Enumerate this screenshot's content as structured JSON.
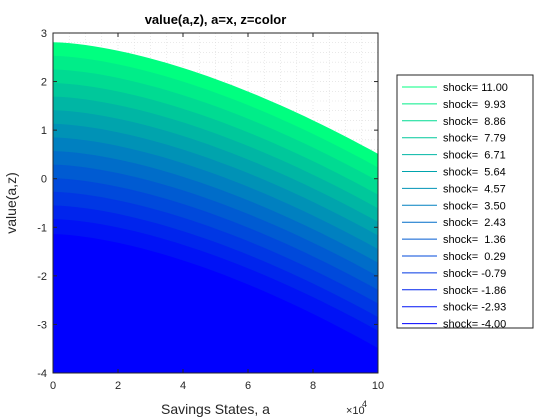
{
  "chart_data": {
    "type": "area",
    "title": "value(a,z), a=x, z=color",
    "xlabel": "Savings States, a",
    "ylabel": "value(a,z)",
    "x_exponent_label": "×10",
    "x_exponent_power": "4",
    "xlim": [
      0,
      100000
    ],
    "ylim": [
      -4,
      3
    ],
    "x_ticks": [
      0,
      20000,
      40000,
      60000,
      80000,
      100000
    ],
    "x_tick_labels": [
      "0",
      "2",
      "4",
      "6",
      "8",
      "10"
    ],
    "y_ticks": [
      -4,
      -3,
      -2,
      -1,
      0,
      1,
      2,
      3
    ],
    "y_tick_labels": [
      "-4",
      "-3",
      "-2",
      "-1",
      "0",
      "1",
      "2",
      "3"
    ],
    "grid": true,
    "minor_grid": true,
    "legend_placement": "outside-right",
    "color_low": "#0000ff",
    "color_high": "#00ff80",
    "curve_exponent": 1.6,
    "x": [
      0,
      100000
    ],
    "series": [
      {
        "name": "shock= 11.00",
        "values": [
          2.8,
          0.5
        ]
      },
      {
        "name": "shock=  9.93",
        "values": [
          2.52,
          0.22
        ]
      },
      {
        "name": "shock=  8.86",
        "values": [
          2.24,
          -0.06
        ]
      },
      {
        "name": "shock=  7.79",
        "values": [
          1.96,
          -0.34
        ]
      },
      {
        "name": "shock=  6.71",
        "values": [
          1.68,
          -0.62
        ]
      },
      {
        "name": "shock=  5.64",
        "values": [
          1.4,
          -0.9
        ]
      },
      {
        "name": "shock=  4.57",
        "values": [
          1.12,
          -1.18
        ]
      },
      {
        "name": "shock=  3.50",
        "values": [
          0.84,
          -1.46
        ]
      },
      {
        "name": "shock=  2.43",
        "values": [
          0.56,
          -1.74
        ]
      },
      {
        "name": "shock=  1.36",
        "values": [
          0.28,
          -2.02
        ]
      },
      {
        "name": "shock=  0.29",
        "values": [
          0.0,
          -2.3
        ]
      },
      {
        "name": "shock= -0.79",
        "values": [
          -0.28,
          -2.58
        ]
      },
      {
        "name": "shock= -1.86",
        "values": [
          -0.56,
          -2.86
        ]
      },
      {
        "name": "shock= -2.93",
        "values": [
          -0.84,
          -3.14
        ]
      },
      {
        "name": "shock= -4.00",
        "values": [
          -1.15,
          -3.5
        ]
      }
    ]
  }
}
